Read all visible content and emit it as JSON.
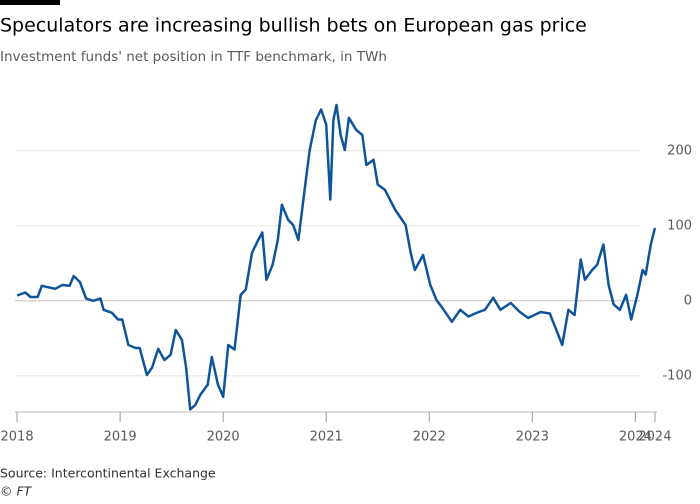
{
  "chart_data": {
    "type": "line",
    "title": "Speculators are increasing bullish bets on European gas price",
    "subtitle": "Investment funds' net position in TTF benchmark, in TWh",
    "source": "Source: Intercontinental Exchange",
    "credit": "© FT",
    "xlim": [
      2017.98,
      2024.21
    ],
    "ylim": [
      -155,
      285
    ],
    "xticks": [
      2018,
      2019,
      2020,
      2021,
      2022,
      2023,
      2024,
      {
        "value": 2024.19,
        "label": "2024"
      }
    ],
    "yticks": [
      -100,
      0,
      100,
      200
    ],
    "grid": true,
    "series": [
      {
        "color": "#0f5499",
        "x": [
          2018.0,
          2018.08,
          2018.13,
          2018.2,
          2018.24,
          2018.37,
          2018.44,
          2018.51,
          2018.55,
          2018.61,
          2018.67,
          2018.74,
          2018.81,
          2018.84,
          2018.92,
          2018.98,
          2019.02,
          2019.08,
          2019.15,
          2019.19,
          2019.26,
          2019.31,
          2019.37,
          2019.43,
          2019.49,
          2019.54,
          2019.6,
          2019.64,
          2019.68,
          2019.73,
          2019.78,
          2019.85,
          2019.89,
          2019.95,
          2020.0,
          2020.05,
          2020.11,
          2020.17,
          2020.22,
          2020.28,
          2020.34,
          2020.38,
          2020.42,
          2020.48,
          2020.53,
          2020.57,
          2020.63,
          2020.68,
          2020.73,
          2020.79,
          2020.84,
          2020.9,
          2020.95,
          2021.0,
          2021.04,
          2021.07,
          2021.1,
          2021.14,
          2021.18,
          2021.22,
          2021.29,
          2021.35,
          2021.39,
          2021.46,
          2021.5,
          2021.57,
          2021.67,
          2021.77,
          2021.82,
          2021.86,
          2021.94,
          2022.01,
          2022.07,
          2022.14,
          2022.22,
          2022.3,
          2022.38,
          2022.48,
          2022.54,
          2022.62,
          2022.69,
          2022.79,
          2022.88,
          2022.96,
          2023.08,
          2023.17,
          2023.25,
          2023.29,
          2023.35,
          2023.41,
          2023.47,
          2023.51,
          2023.58,
          2023.63,
          2023.69,
          2023.74,
          2023.79,
          2023.85,
          2023.91,
          2023.96,
          2024.02,
          2024.07,
          2024.1,
          2024.15,
          2024.19
        ],
        "values": [
          7,
          11,
          5,
          5,
          20,
          16,
          21,
          20,
          33,
          25,
          3,
          0,
          3,
          -12,
          -16,
          -25,
          -25,
          -59,
          -63,
          -63,
          -99,
          -89,
          -64,
          -79,
          -72,
          -39,
          -52,
          -89,
          -145,
          -139,
          -125,
          -112,
          -75,
          -112,
          -128,
          -59,
          -65,
          8,
          15,
          64,
          81,
          91,
          28,
          48,
          81,
          128,
          108,
          101,
          81,
          148,
          201,
          241,
          255,
          235,
          135,
          241,
          261,
          221,
          201,
          244,
          228,
          221,
          181,
          188,
          155,
          148,
          121,
          101,
          64,
          41,
          61,
          21,
          1,
          -12,
          -28,
          -12,
          -21,
          -15,
          -12,
          4,
          -12,
          -3,
          -15,
          -23,
          -15,
          -17,
          -45,
          -59,
          -12,
          -19,
          55,
          28,
          41,
          48,
          75,
          21,
          -5,
          -12,
          8,
          -25,
          8,
          41,
          35,
          75,
          97
        ]
      }
    ]
  }
}
